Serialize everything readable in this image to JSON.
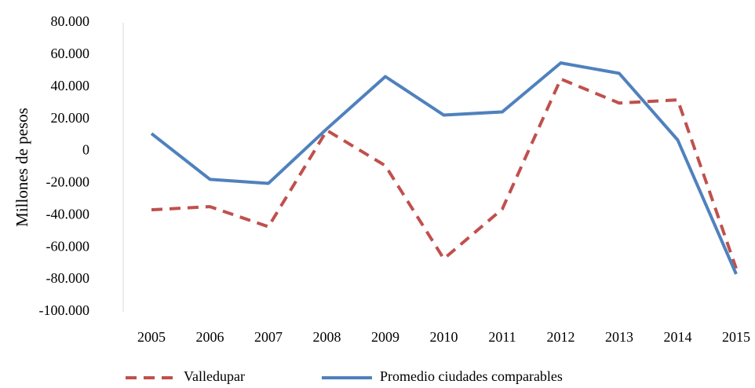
{
  "chart_data": {
    "type": "line",
    "y_label": "Millones de pesos",
    "categories": [
      "2005",
      "2006",
      "2007",
      "2008",
      "2009",
      "2010",
      "2011",
      "2012",
      "2013",
      "2014",
      "2015"
    ],
    "series": [
      {
        "name": "Valledupar",
        "color": "#c0504d",
        "dashed": true,
        "values": [
          -36500,
          -34500,
          -47000,
          13000,
          -9000,
          -67000,
          -36000,
          45000,
          30000,
          32000,
          -73000
        ]
      },
      {
        "name": "Promedio ciudades comparables",
        "color": "#4f81bd",
        "dashed": false,
        "values": [
          11000,
          -17500,
          -20000,
          14000,
          46500,
          22500,
          24500,
          55000,
          48500,
          7000,
          -76500
        ]
      }
    ],
    "ylim": [
      -100000,
      80000
    ],
    "yticks": [
      {
        "value": -100000,
        "label": "-100.000"
      },
      {
        "value": -80000,
        "label": "-80.000"
      },
      {
        "value": -60000,
        "label": "-60.000"
      },
      {
        "value": -40000,
        "label": "-40.000"
      },
      {
        "value": -20000,
        "label": "-20.000"
      },
      0,
      {
        "value": 20000,
        "label": "20.000"
      },
      {
        "value": 40000,
        "label": "40.000"
      },
      {
        "value": 60000,
        "label": "60.000"
      },
      {
        "value": 80000,
        "label": "80.000"
      }
    ],
    "grid": false,
    "legend": "bottom"
  }
}
